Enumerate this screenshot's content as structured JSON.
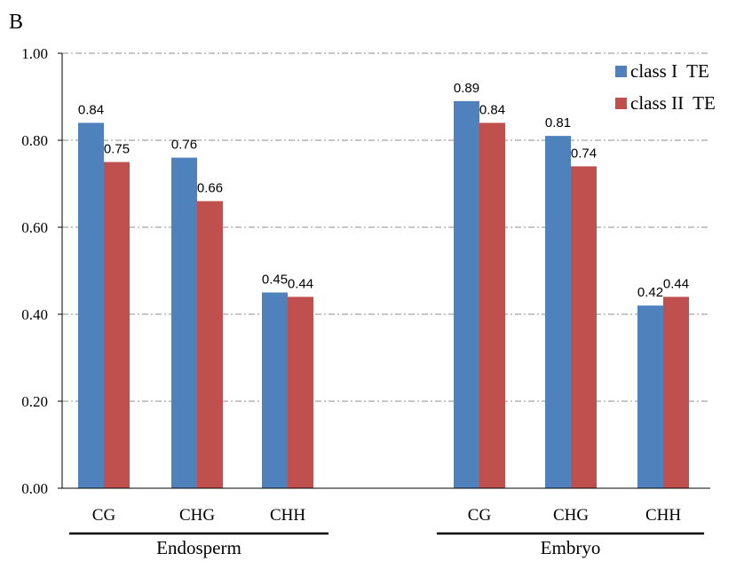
{
  "chart_data": {
    "type": "bar",
    "panel_label": "B",
    "groups": [
      {
        "name": "Endosperm",
        "categories": [
          "CG",
          "CHG",
          "CHH"
        ]
      },
      {
        "name": "Embryo",
        "categories": [
          "CG",
          "CHG",
          "CHH"
        ]
      }
    ],
    "series": [
      {
        "name": "class I  TE",
        "color": "#4f81bd",
        "values": [
          [
            0.84,
            0.76,
            0.45
          ],
          [
            0.89,
            0.81,
            0.42
          ]
        ],
        "labels": [
          [
            "0.84",
            "0.76",
            "0.45"
          ],
          [
            "0.89",
            "0.81",
            "0.42"
          ]
        ]
      },
      {
        "name": "class II  TE",
        "color": "#c0504d",
        "values": [
          [
            0.75,
            0.66,
            0.44
          ],
          [
            0.84,
            0.74,
            0.44
          ]
        ],
        "labels": [
          [
            "0.75",
            "0.66",
            "0.44"
          ],
          [
            "0.84",
            "0.74",
            "0.44"
          ]
        ]
      }
    ],
    "ylim": [
      0,
      1
    ],
    "yticks": [
      "0.00",
      "0.20",
      "0.40",
      "0.60",
      "0.80",
      "1.00"
    ],
    "grid": true,
    "legend": "top-right"
  }
}
